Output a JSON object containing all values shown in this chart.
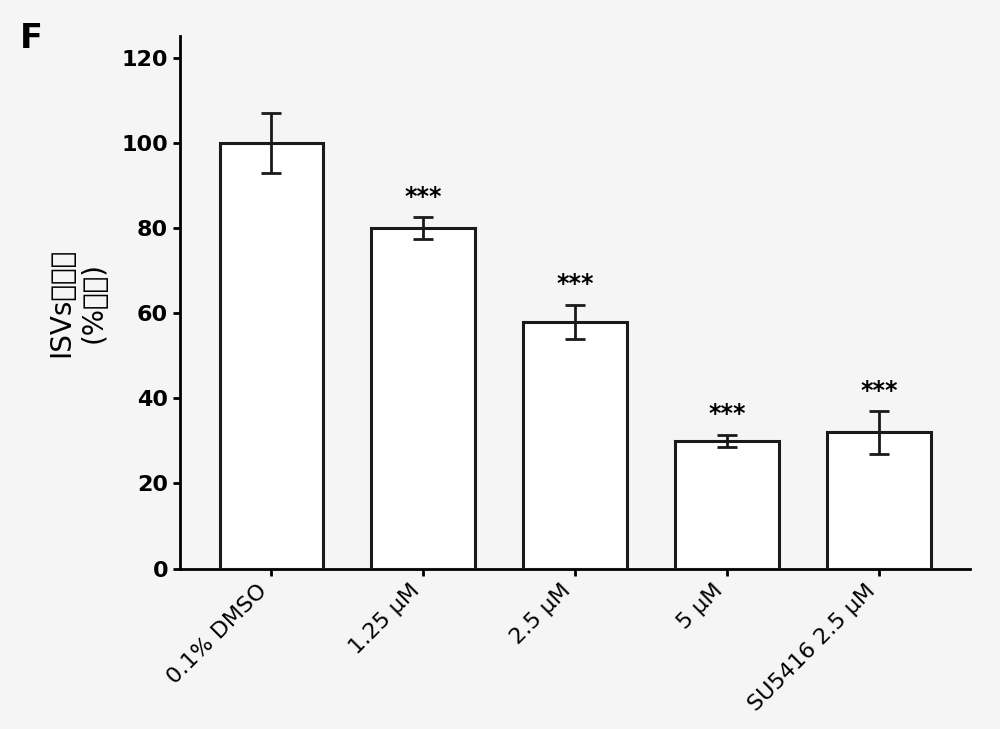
{
  "categories": [
    "0.1% DMSO",
    "1.25 μM",
    "2.5 μM",
    "5 μM",
    "SU5416 2.5 μM"
  ],
  "values": [
    100,
    80,
    58,
    30,
    32
  ],
  "errors": [
    7,
    2.5,
    4,
    1.5,
    5
  ],
  "bar_color": "#ffffff",
  "bar_edgecolor": "#1a1a1a",
  "bar_linewidth": 2.2,
  "error_color": "#1a1a1a",
  "error_linewidth": 2.0,
  "error_capsize": 7,
  "ylabel_line1": "ISVs总长度",
  "ylabel_line2": "(%对白)",
  "ylabel_fontsize": 20,
  "tick_fontsize": 16,
  "xtick_fontsize": 16,
  "ylim": [
    0,
    125
  ],
  "yticks": [
    0,
    20,
    40,
    60,
    80,
    100,
    120
  ],
  "significance": [
    "",
    "***",
    "***",
    "***",
    "***"
  ],
  "sig_fontsize": 17,
  "panel_label": "F",
  "panel_label_fontsize": 24,
  "background_color": "#f5f5f5",
  "axes_linewidth": 2.0,
  "bar_width": 0.68
}
